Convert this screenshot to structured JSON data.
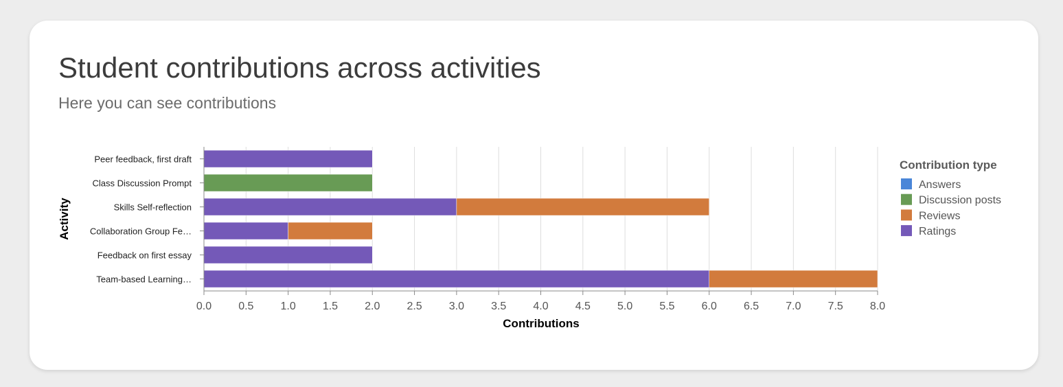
{
  "card": {
    "title": "Student contributions across activities",
    "subtitle": "Here you can see contributions"
  },
  "chart_data": {
    "type": "bar",
    "orientation": "horizontal",
    "stacked": true,
    "xlabel": "Contributions",
    "ylabel": "Activity",
    "xlim": [
      0,
      8
    ],
    "xticks": [
      "0.0",
      "0.5",
      "1.0",
      "1.5",
      "2.0",
      "2.5",
      "3.0",
      "3.5",
      "4.0",
      "4.5",
      "5.0",
      "5.5",
      "6.0",
      "6.5",
      "7.0",
      "7.5",
      "8.0"
    ],
    "grid": true,
    "categories": [
      "Peer feedback, first draft",
      "Class Discussion Prompt",
      "Skills Self-reflection",
      "Collaboration Group Fe…",
      "Feedback on first essay",
      "Team-based Learning…"
    ],
    "series": [
      {
        "name": "Answers",
        "color": "#4a86d8",
        "values": [
          0,
          0,
          0,
          0,
          0,
          0
        ]
      },
      {
        "name": "Discussion posts",
        "color": "#689b55",
        "values": [
          0,
          2,
          0,
          0,
          0,
          0
        ]
      },
      {
        "name": "Reviews",
        "color": "#d27b3d",
        "values": [
          0,
          0,
          3,
          1,
          0,
          2
        ]
      },
      {
        "name": "Ratings",
        "color": "#7459b8",
        "values": [
          2,
          0,
          3,
          1,
          2,
          6
        ]
      }
    ],
    "stack_order": [
      "Ratings",
      "Discussion posts",
      "Reviews",
      "Answers"
    ],
    "legend": {
      "title": "Contribution type",
      "position": "right"
    }
  }
}
